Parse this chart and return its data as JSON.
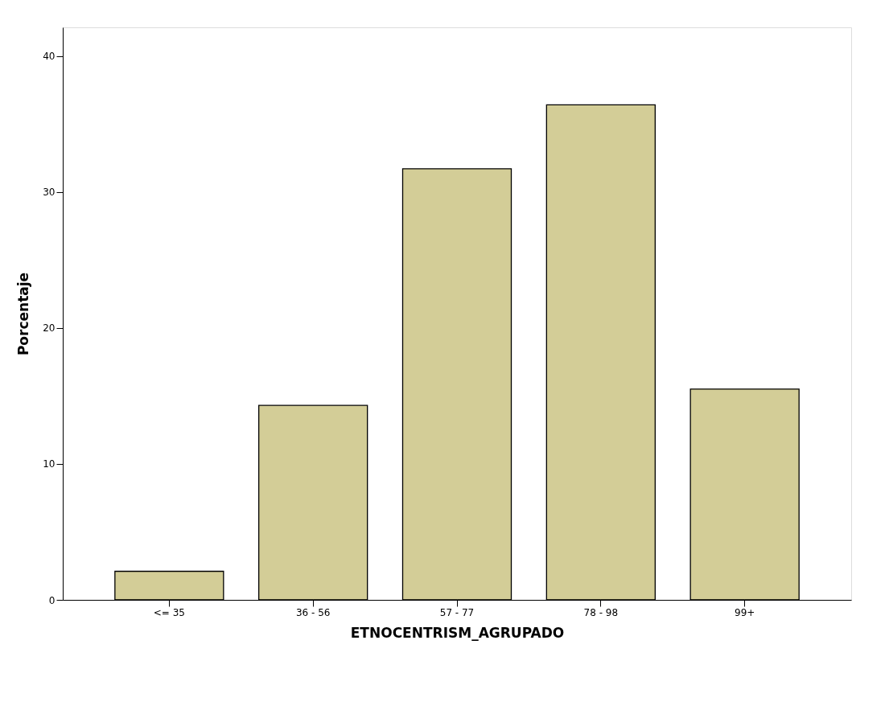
{
  "chart_data": {
    "type": "bar",
    "xlabel": "ETNOCENTRISM_AGRUPADO",
    "ylabel": "Porcentaje",
    "categories": [
      "<= 35",
      "36 - 56",
      "57 - 77",
      "78 - 98",
      "99+"
    ],
    "values": [
      2.1,
      14.3,
      31.7,
      36.4,
      15.5
    ],
    "color": "#d3cd97",
    "ylim": [
      0,
      42.1
    ],
    "yticks": [
      0,
      10,
      20,
      30,
      40
    ],
    "grid": false
  }
}
